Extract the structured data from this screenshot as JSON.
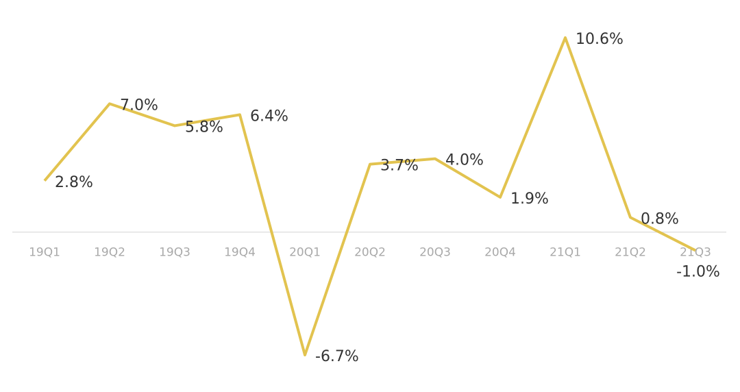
{
  "chart_data": {
    "type": "line",
    "categories": [
      "19Q1",
      "19Q2",
      "19Q3",
      "19Q4",
      "20Q1",
      "20Q2",
      "20Q3",
      "20Q4",
      "21Q1",
      "21Q2",
      "21Q3"
    ],
    "series": [
      {
        "color": "#e2c34f",
        "values": [
          2.8,
          7.0,
          5.8,
          6.4,
          -6.7,
          3.7,
          4.0,
          1.9,
          10.6,
          0.8,
          -1.0
        ],
        "value_labels": [
          "2.8%",
          "7.0%",
          "5.8%",
          "6.4%",
          "-6.7%",
          "3.7%",
          "4.0%",
          "1.9%",
          "10.6%",
          "0.8%",
          "-1.0%"
        ]
      }
    ]
  }
}
